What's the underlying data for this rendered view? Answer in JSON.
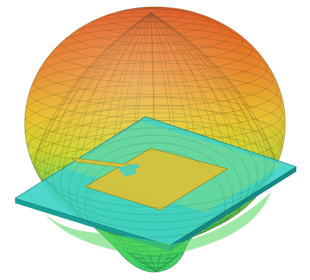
{
  "scene": {
    "description_free": true,
    "colors": {
      "pattern_top": "#e2551f",
      "pattern_mid": "#e8b42a",
      "pattern_low": "#d4d62c",
      "pattern_bottom": "#3fd85a",
      "mesh_line": "#3a2a10",
      "substrate_top": "#3fd2c8",
      "substrate_edge": "#1a8f8a",
      "patch_fill": "#d8c23a",
      "patch_edge": "#8a7a1a"
    }
  }
}
